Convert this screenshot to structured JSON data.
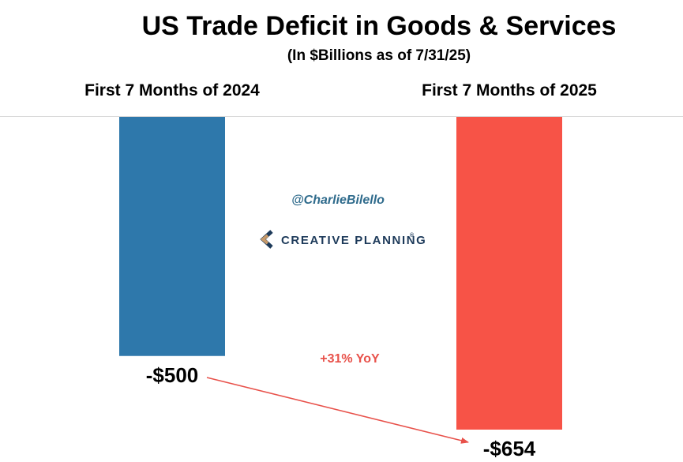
{
  "chart_data": {
    "type": "bar",
    "title": "US Trade Deficit in Goods & Services",
    "subtitle": "(In $Billions as of 7/31/25)",
    "categories": [
      "First 7 Months of 2024",
      "First 7 Months of 2025"
    ],
    "values": [
      -500,
      -654
    ],
    "value_labels": [
      "-$500",
      "-$654"
    ],
    "ylim": [
      -700,
      0
    ],
    "grid": false,
    "annotation": "+31% YoY",
    "colors": [
      "#2e78ab",
      "#f75347"
    ],
    "annotation_color": "#e8514a"
  },
  "watermark": {
    "handle": "@CharlieBilello",
    "brand": "CREATIVE PLANNING",
    "brand_mark": "®",
    "handle_color": "#2f6b8c",
    "brand_color": "#1d3a5a",
    "logo_colors": [
      "#1d3a5a",
      "#c79a6a"
    ]
  }
}
